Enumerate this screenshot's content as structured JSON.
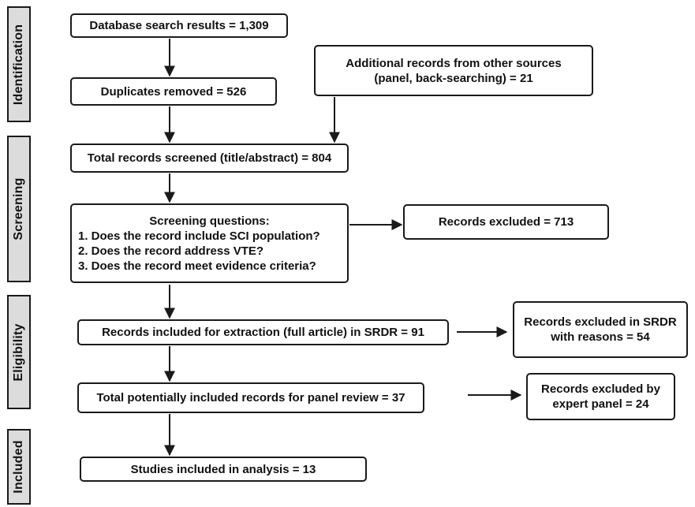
{
  "stages": {
    "identification": "Identification",
    "screening": "Screening",
    "eligibility": "Eligibility",
    "included": "Included"
  },
  "boxes": {
    "database_search": "Database search results = 1,309",
    "duplicates_removed": "Duplicates removed = 526",
    "additional_records": {
      "line1": "Additional records from other sources",
      "line2": "(panel, back-searching) = 21"
    },
    "total_screened": "Total records screened (title/abstract) = 804",
    "screening_questions": {
      "heading": "Screening questions:",
      "q1": "1.  Does the record include SCI population?",
      "q2": "2.  Does the record address VTE?",
      "q3": "3.  Does the record meet evidence criteria?"
    },
    "records_excluded": "Records excluded = 713",
    "included_extraction": "Records included for extraction (full article) in SRDR = 91",
    "excluded_srdr": {
      "line1": "Records excluded in SRDR",
      "line2": "with reasons = 54"
    },
    "panel_review": "Total potentially included records for panel review = 37",
    "excluded_panel": {
      "line1": "Records excluded by",
      "line2": "expert panel = 24"
    },
    "studies_included": "Studies included in analysis = 13"
  }
}
